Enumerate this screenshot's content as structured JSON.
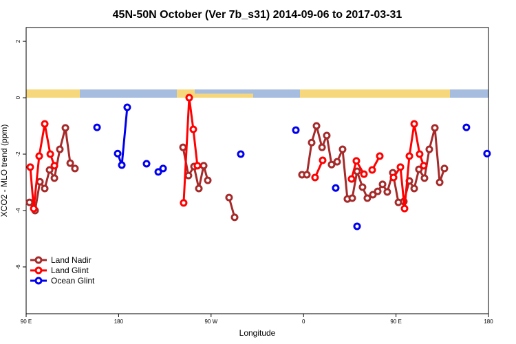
{
  "chart_data": {
    "type": "line",
    "title": "45N-50N October (Ver 7b_s31)   2014-09-06 to 2017-03-31",
    "xlabel": "Longitude",
    "ylabel": "XCO2 - MLO trend (ppm)",
    "xlim": [
      90,
      540
    ],
    "ylim": [
      -7.66,
      2.49
    ],
    "xticks": [
      {
        "value": 90,
        "label": "90 E"
      },
      180,
      {
        "value": 270,
        "label": "90 W"
      },
      {
        "value": 360,
        "label": "0"
      },
      {
        "value": 450,
        "label": "90 E"
      },
      {
        "value": 540,
        "label": "180"
      }
    ],
    "yticks": [
      2,
      0,
      -2,
      -4,
      -6
    ],
    "legend": "lower left",
    "series": [
      {
        "name": "Land Nadir",
        "color": "#a52a2a",
        "x": [
          93.3,
          98.7,
          103.4,
          108.1,
          112.8,
          117.5,
          122.8,
          128.2,
          132.9,
          137.5,
          null,
          242.7,
          248.0,
          253.4,
          258.1,
          262.8,
          266.8,
          null,
          287.5,
          292.9,
          null,
          358.5,
          363.2,
          367.9,
          372.6,
          378.0,
          382.6,
          387.3,
          392.7,
          398.0,
          402.7,
          407.4,
          412.1,
          417.4,
          422.1,
          427.5,
          432.2,
          436.9,
          441.5,
          446.9,
          452.3,
          457.6,
          463.0,
          467.7,
          472.3,
          477.7,
          482.4,
          487.8,
          492.5,
          497.1
        ],
        "values": [
          -3.71,
          -4.0,
          -2.98,
          -3.22,
          -2.56,
          -2.85,
          -1.83,
          -1.07,
          -2.32,
          -2.51,
          null,
          -1.76,
          -2.76,
          -2.44,
          -3.22,
          -2.41,
          -2.93,
          null,
          -3.54,
          -4.24,
          null,
          -2.73,
          -2.73,
          -1.59,
          -1.0,
          -1.76,
          -1.34,
          -2.37,
          -2.27,
          -1.83,
          -3.59,
          -3.56,
          -2.61,
          -3.17,
          -3.56,
          -3.44,
          -3.32,
          -3.07,
          -3.34,
          -2.66,
          -3.71,
          -3.68,
          -2.95,
          -3.22,
          -2.54,
          -2.85,
          -1.83,
          -1.07,
          -3.0,
          -2.51
        ]
      },
      {
        "name": "Land Glint",
        "color": "#ff0000",
        "x": [
          94.0,
          97.4,
          102.7,
          108.1,
          113.5,
          117.5,
          null,
          243.3,
          248.7,
          252.7,
          256.7,
          null,
          371.2,
          378.6,
          null,
          406.7,
          411.4,
          418.8,
          null,
          426.8,
          434.2,
          null,
          447.6,
          454.3,
          458.3,
          463.0,
          467.7,
          473.0,
          477.0
        ],
        "values": [
          -2.46,
          -3.93,
          -2.07,
          -0.93,
          -2.0,
          -2.41,
          null,
          -3.73,
          0.0,
          -1.12,
          -2.41,
          null,
          -2.83,
          -2.22,
          null,
          -2.88,
          -2.24,
          -2.71,
          null,
          -2.56,
          -2.07,
          null,
          -2.83,
          -2.46,
          -3.93,
          -2.07,
          -0.93,
          -2.0,
          -2.41
        ]
      },
      {
        "name": "Ocean Glint",
        "color": "#0000ee",
        "x": [
          159.0,
          null,
          179.1,
          183.1,
          188.4,
          null,
          207.2,
          null,
          218.6,
          null,
          223.3,
          null,
          298.9,
          null,
          352.5,
          null,
          391.3,
          null,
          412.1,
          null,
          518.5,
          null,
          538.6
        ],
        "values": [
          -1.05,
          null,
          -1.98,
          -2.39,
          -0.34,
          null,
          -2.34,
          null,
          -2.63,
          null,
          -2.51,
          null,
          -2.0,
          null,
          -1.15,
          null,
          -3.2,
          null,
          -4.56,
          null,
          -1.05,
          null,
          -1.98
        ]
      }
    ]
  }
}
